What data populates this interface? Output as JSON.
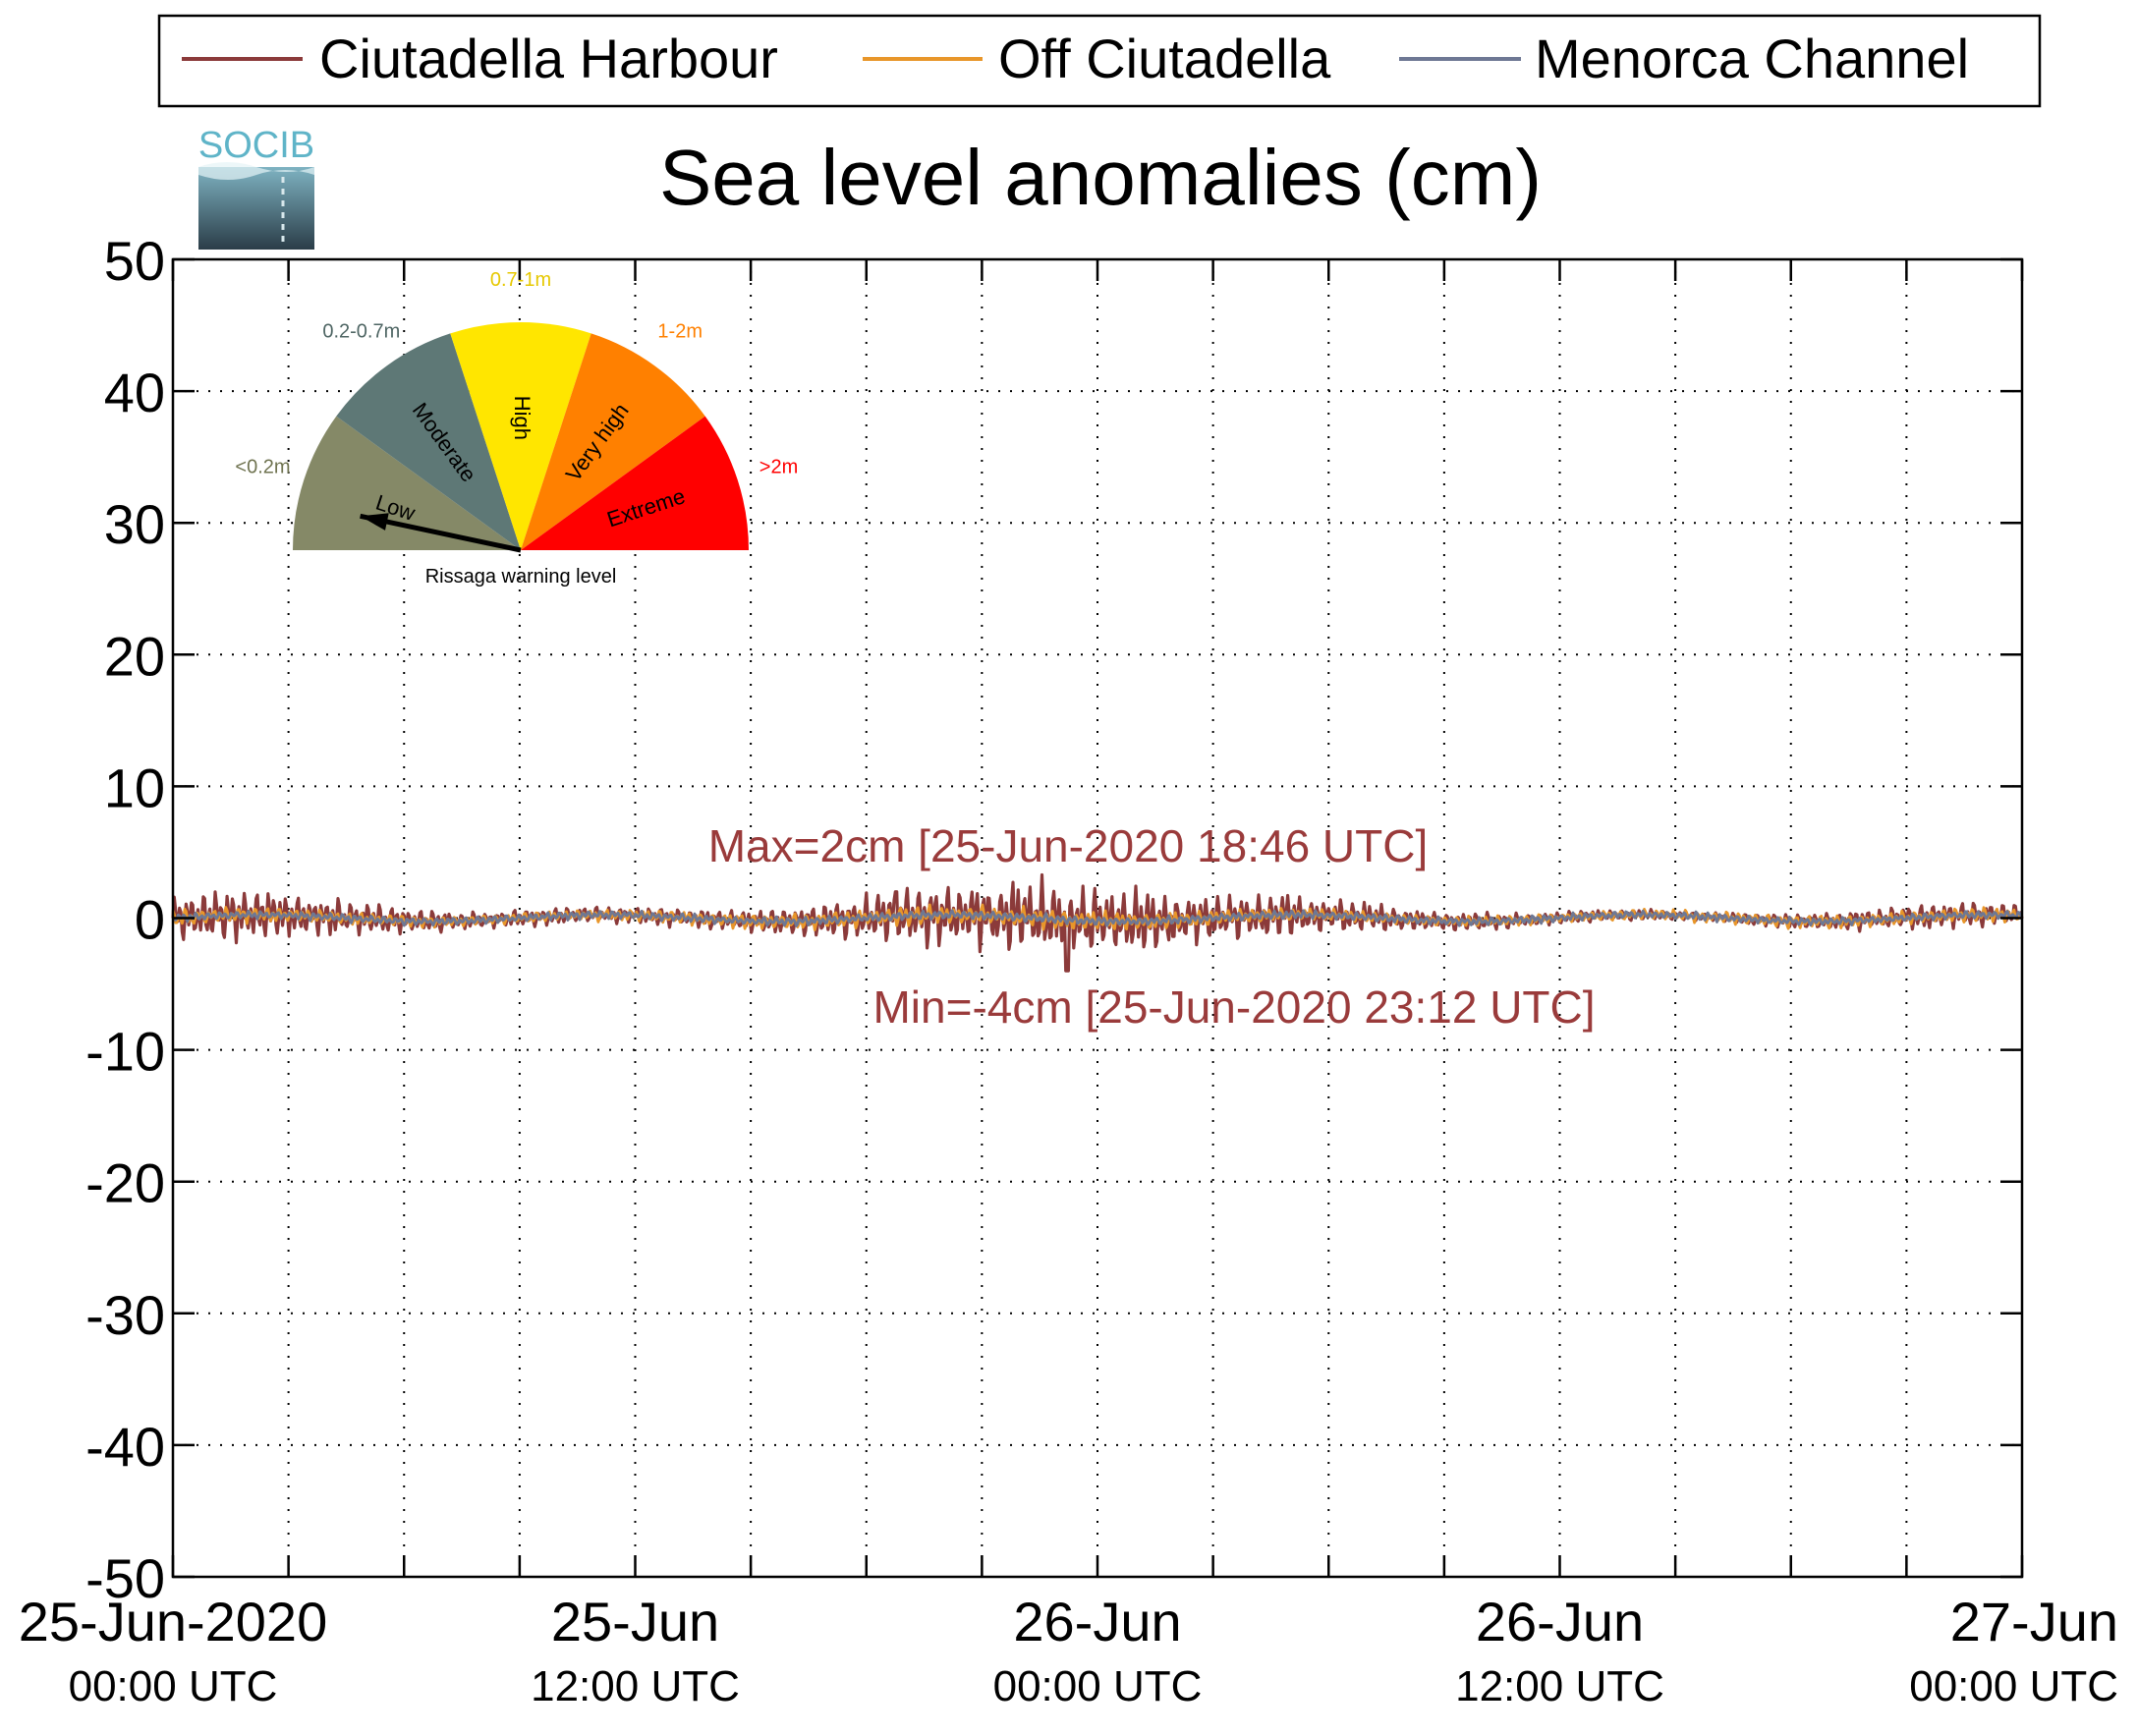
{
  "logo": {
    "text": "SOCIB"
  },
  "chart_data": {
    "type": "line",
    "title": "Sea level anomalies (cm)",
    "xlabel": "",
    "ylabel": "",
    "ylim": [
      -50,
      50
    ],
    "yticks": [
      50,
      40,
      30,
      20,
      10,
      0,
      -10,
      -20,
      -30,
      -40,
      -50
    ],
    "xlim_hours": [
      0,
      48
    ],
    "xticks": [
      {
        "hour": 0,
        "line1": "25-Jun-2020",
        "line2": "00:00 UTC"
      },
      {
        "hour": 12,
        "line1": "25-Jun",
        "line2": "12:00 UTC"
      },
      {
        "hour": 24,
        "line1": "26-Jun",
        "line2": "00:00 UTC"
      },
      {
        "hour": 36,
        "line1": "26-Jun",
        "line2": "12:00 UTC"
      },
      {
        "hour": 48,
        "line1": "27-Jun",
        "line2": "00:00 UTC"
      }
    ],
    "minor_x_hours": [
      3,
      6,
      9,
      15,
      18,
      21,
      27,
      30,
      33,
      39,
      42,
      45
    ],
    "grid": true,
    "legend": "top",
    "series": [
      {
        "name": "Ciutadella Harbour",
        "color": "#8b3a3a",
        "amplitude_profile": [
          [
            0,
            1.4
          ],
          [
            2,
            1.8
          ],
          [
            4,
            1.2
          ],
          [
            8,
            0.6
          ],
          [
            12,
            0.5
          ],
          [
            16,
            0.9
          ],
          [
            18,
            1.6
          ],
          [
            21,
            2.2
          ],
          [
            23,
            2.6
          ],
          [
            25,
            2.0
          ],
          [
            28,
            1.6
          ],
          [
            32,
            0.8
          ],
          [
            36,
            0.4
          ],
          [
            40,
            0.3
          ],
          [
            43,
            0.6
          ],
          [
            46,
            0.9
          ],
          [
            48,
            0.6
          ]
        ],
        "min_value": -4,
        "max_value": 2
      },
      {
        "name": "Off Ciutadella",
        "color": "#e8962a",
        "amplitude_profile": [
          [
            0,
            0.6
          ],
          [
            8,
            0.3
          ],
          [
            18,
            0.6
          ],
          [
            24,
            0.7
          ],
          [
            32,
            0.3
          ],
          [
            48,
            0.5
          ]
        ]
      },
      {
        "name": "Menorca Channel",
        "color": "#6e7894",
        "amplitude_profile": [
          [
            0,
            0.25
          ],
          [
            24,
            0.3
          ],
          [
            48,
            0.25
          ]
        ]
      }
    ],
    "annotations": [
      {
        "text": "Max=2cm [25-Jun-2020 18:46 UTC]",
        "color": "#9a3b3b"
      },
      {
        "text": "Min=-4cm [25-Jun-2020 23:12 UTC]",
        "color": "#9a3b3b"
      }
    ]
  },
  "gauge": {
    "caption": "Rissaga warning level",
    "sectors": [
      {
        "label": "Low",
        "range": "<0.2m",
        "color": "#858967",
        "range_color": "#6f7350"
      },
      {
        "label": "Moderate",
        "range": "0.2-0.7m",
        "color": "#5e7876",
        "range_color": "#4f6664"
      },
      {
        "label": "High",
        "range": "0.7-1m",
        "color": "#ffe600",
        "range_color": "#e6c800"
      },
      {
        "label": "Very high",
        "range": "1-2m",
        "color": "#ff8000",
        "range_color": "#ff8000"
      },
      {
        "label": "Extreme",
        "range": ">2m",
        "color": "#ff0000",
        "range_color": "#ff0000"
      }
    ],
    "current_level": "Low"
  }
}
